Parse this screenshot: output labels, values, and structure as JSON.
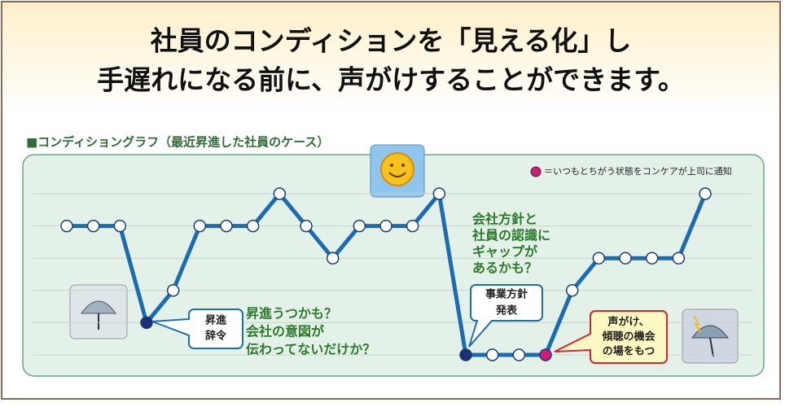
{
  "header": {
    "title_lines": [
      "社員のコンディションを「見える化」し",
      "手遅れになる前に、声がけすることができます。"
    ]
  },
  "chart_data": {
    "type": "line",
    "subtitle": "■コンディショングラフ（最近昇進した社員のケース）",
    "legend_note": "＝いつもとちがう状態をコンケアが上司に通知",
    "legend_color": "#d6187a",
    "categories": [
      null,
      null,
      null,
      null,
      null,
      null,
      null,
      null,
      null,
      null,
      null,
      null,
      null,
      null,
      null,
      null,
      null,
      null,
      null,
      null,
      null,
      null,
      null,
      null,
      null
    ],
    "series": [
      {
        "color": "#1a6db3",
        "values": [
          4,
          4,
          4,
          1,
          2,
          4,
          4,
          4,
          5,
          4,
          3,
          4,
          4,
          4,
          5,
          0,
          0,
          0,
          0,
          2,
          3,
          3,
          3,
          3,
          5
        ],
        "marker_colors": [
          "#ffffff",
          "#ffffff",
          "#ffffff",
          "#1b2f7a",
          "#ffffff",
          "#ffffff",
          "#ffffff",
          "#ffffff",
          "#ffffff",
          "#ffffff",
          "#ffffff",
          "#ffffff",
          "#ffffff",
          "#ffffff",
          "#ffffff",
          "#1b2f7a",
          "#ffffff",
          "#ffffff",
          "#d6187a",
          "#ffffff",
          "#ffffff",
          "#ffffff",
          "#ffffff",
          "#ffffff",
          "#ffffff"
        ]
      }
    ],
    "ylim": [
      0,
      5
    ],
    "yticks": [
      0,
      1,
      2,
      3,
      4,
      5
    ],
    "grid": true,
    "annotations": [
      {
        "lines": [
          "昇進",
          "辞令"
        ]
      },
      {
        "lines": [
          "昇進うつかも？",
          "会社の意図が",
          "伝わってないだけか？"
        ]
      },
      {
        "lines": [
          "会社方針と",
          "社員の認識に",
          "ギャップが",
          "あるかも？"
        ]
      },
      {
        "lines": [
          "事業方針",
          "発表"
        ]
      },
      {
        "lines": [
          "声がけ、",
          "傾聴の機会",
          "の場をもつ"
        ]
      }
    ]
  }
}
